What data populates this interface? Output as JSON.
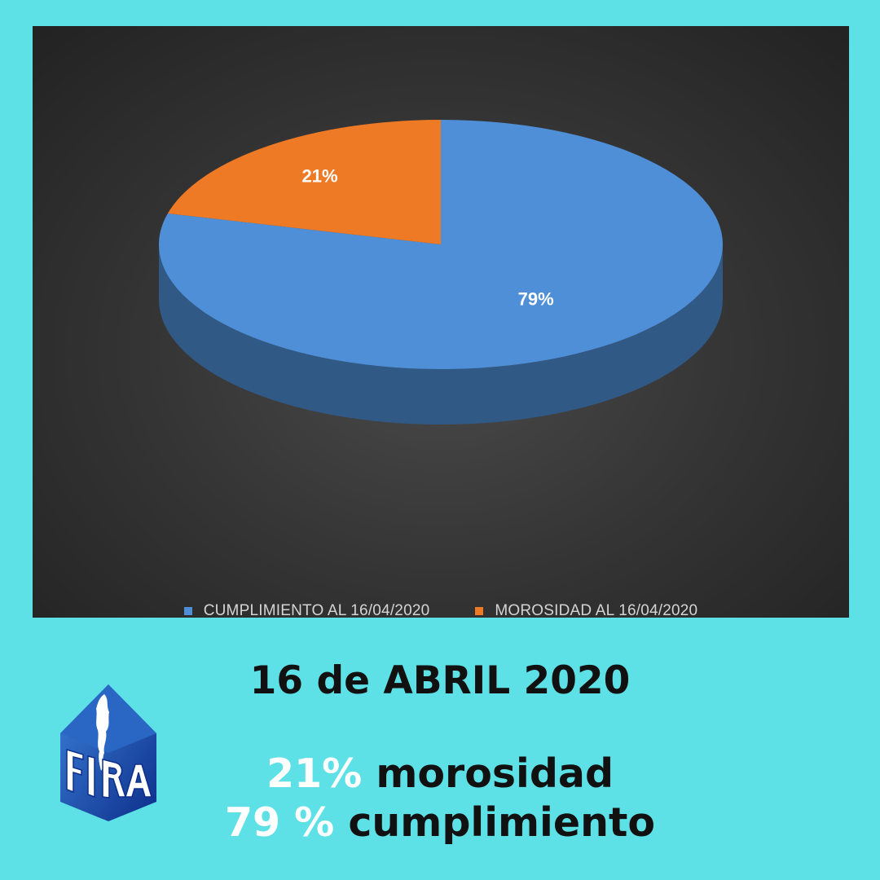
{
  "chart_data": {
    "type": "pie",
    "title": "",
    "slices": [
      {
        "label": "CUMPLIMIENTO AL 16/04/2020",
        "value": 79,
        "display": "79%",
        "color": "#4f8fd8"
      },
      {
        "label": "MOROSIDAD AL 16/04/2020",
        "value": 21,
        "display": "21%",
        "color": "#ee7a26"
      }
    ],
    "legend_position": "bottom",
    "style": "3d"
  },
  "date_title": "16 de ABRIL 2020",
  "summary": {
    "line1_pct": "21%",
    "line1_text": "morosidad",
    "line2_pct": "79 %",
    "line2_text": "cumplimiento"
  },
  "logo": {
    "text": "FIRA",
    "icon": "argentina-map-icon"
  },
  "colors": {
    "background": "#5ee1e6",
    "chart_panel": "#333333",
    "highlight_text": "#ffffff"
  }
}
